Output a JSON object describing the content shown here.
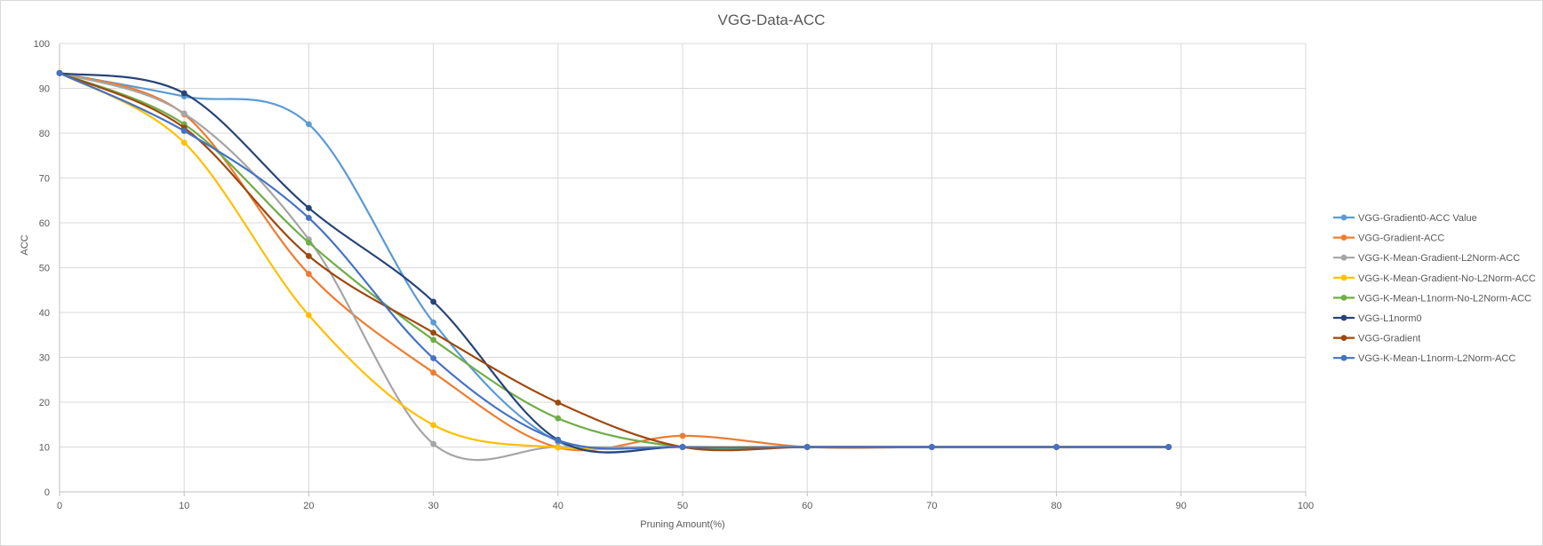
{
  "chart_data": {
    "type": "line",
    "title": "VGG-Data-ACC",
    "xlabel": "Pruning Amount(%)",
    "ylabel": "ACC",
    "xlim": [
      0,
      100
    ],
    "ylim": [
      0,
      100
    ],
    "x_ticks": [
      0,
      10,
      20,
      30,
      40,
      50,
      60,
      70,
      80,
      90,
      100
    ],
    "y_ticks": [
      0,
      10,
      20,
      30,
      40,
      50,
      60,
      70,
      80,
      90,
      100
    ],
    "grid": true,
    "smooth": true,
    "legend_position": "right",
    "series": [
      {
        "name": "VGG-Gradient0-ACC Value",
        "color": "#5b9bd5",
        "x": [
          0,
          10,
          20,
          30,
          40,
          50,
          60,
          70,
          80,
          89
        ],
        "y": [
          93.4,
          88.2,
          82.0,
          37.8,
          11.2,
          10.0,
          10.0,
          10.0,
          10.0,
          10.0
        ]
      },
      {
        "name": "VGG-Gradient-ACC",
        "color": "#ed7d31",
        "x": [
          0,
          10,
          20,
          30,
          40,
          50,
          60,
          70,
          80,
          89
        ],
        "y": [
          93.4,
          84.2,
          48.6,
          26.6,
          9.9,
          12.5,
          10.0,
          10.0,
          10.0,
          10.0
        ]
      },
      {
        "name": "VGG-K-Mean-Gradient-L2Norm-ACC",
        "color": "#a5a5a5",
        "x": [
          0,
          10,
          20,
          30,
          40,
          50,
          60,
          70,
          80,
          89
        ],
        "y": [
          93.4,
          84.4,
          56.3,
          10.7,
          10.0,
          10.0,
          10.0,
          10.0,
          10.0,
          10.0
        ]
      },
      {
        "name": "VGG-K-Mean-Gradient-No-L2Norm-ACC",
        "color": "#ffc000",
        "x": [
          0,
          10,
          20,
          30,
          40,
          50,
          60,
          70,
          80,
          89
        ],
        "y": [
          93.4,
          77.9,
          39.4,
          14.9,
          9.9,
          10.0,
          10.0,
          10.0,
          10.0,
          10.0
        ]
      },
      {
        "name": "VGG-K-Mean-L1norm-No-L2Norm-ACC",
        "color": "#70ad47",
        "x": [
          0,
          10,
          20,
          30,
          40,
          50,
          60,
          70,
          80,
          89
        ],
        "y": [
          93.4,
          82.0,
          55.6,
          33.9,
          16.4,
          10.0,
          10.0,
          10.0,
          10.0,
          10.0
        ]
      },
      {
        "name": "VGG-L1norm0",
        "color": "#264478",
        "x": [
          0,
          10,
          20,
          30,
          40,
          50,
          60,
          70,
          80,
          89
        ],
        "y": [
          93.4,
          88.9,
          63.3,
          42.4,
          11.6,
          10.0,
          10.0,
          10.0,
          10.0,
          10.0
        ]
      },
      {
        "name": "VGG-Gradient",
        "color": "#9e480e",
        "x": [
          0,
          10,
          20,
          30,
          40,
          50,
          60,
          70,
          80,
          89
        ],
        "y": [
          93.4,
          81.2,
          52.6,
          35.5,
          19.9,
          10.0,
          10.0,
          10.0,
          10.0,
          10.0
        ]
      },
      {
        "name": "VGG-K-Mean-L1norm-L2Norm-ACC",
        "color": "#4472c4",
        "x": [
          0,
          10,
          20,
          30,
          40,
          50,
          60,
          70,
          80,
          89
        ],
        "y": [
          93.4,
          80.5,
          61.1,
          29.8,
          11.5,
          10.0,
          10.0,
          10.0,
          10.0,
          10.0
        ]
      }
    ]
  },
  "colors": {
    "grid": "#d9d9d9",
    "axis": "#bfbfbf",
    "text": "#595959"
  }
}
